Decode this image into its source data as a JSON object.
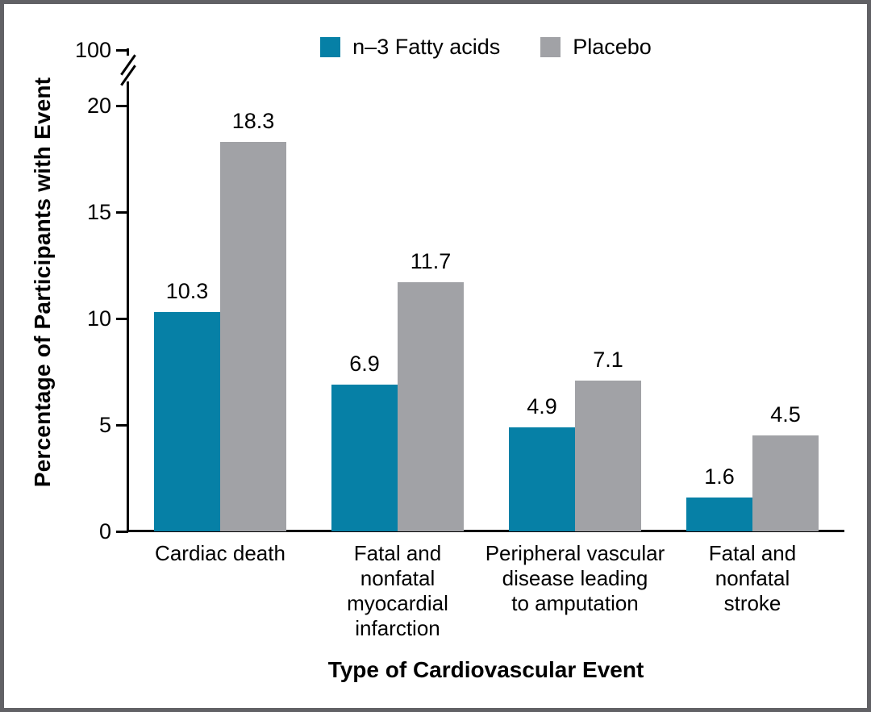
{
  "figure": {
    "border_color": "#616165",
    "background": "#ffffff"
  },
  "legend": {
    "position": "top",
    "items": [
      {
        "label": "n–3 Fatty acids",
        "color": "#0680A6",
        "swatch": "teal-square"
      },
      {
        "label": "Placebo",
        "color": "#A1A2A6",
        "swatch": "gray-square"
      }
    ]
  },
  "chart_data": {
    "type": "bar",
    "title": "",
    "xlabel": "Type of Cardiovascular Event",
    "ylabel": "Percentage of Participants with Event",
    "categories": [
      "Cardiac death",
      "Fatal and nonfatal myocardial infarction",
      "Peripheral vascular disease leading to amputation",
      "Fatal and nonfatal stroke"
    ],
    "category_lines": [
      [
        "Cardiac death"
      ],
      [
        "Fatal and",
        "nonfatal",
        "myocardial",
        "infarction"
      ],
      [
        "Peripheral vascular",
        "disease leading",
        "to amputation"
      ],
      [
        "Fatal and",
        "nonfatal",
        "stroke"
      ]
    ],
    "series": [
      {
        "name": "n–3 Fatty acids",
        "color": "#0680A6",
        "values": [
          10.3,
          6.9,
          4.9,
          1.6
        ]
      },
      {
        "name": "Placebo",
        "color": "#A1A2A6",
        "values": [
          18.3,
          11.7,
          7.1,
          4.5
        ]
      }
    ],
    "value_label_decimals": 1,
    "yticks": [
      0,
      5,
      10,
      15,
      20
    ],
    "ylim": [
      0,
      20
    ],
    "y_axis_break": true,
    "y_top_tick_label": "100",
    "grid": false,
    "legend_position": "top-center",
    "bar_color_accent": "#0680A6",
    "bar_color_neutral": "#A1A2A6"
  }
}
